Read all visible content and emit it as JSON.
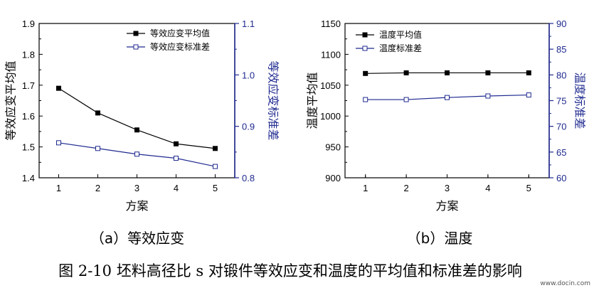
{
  "chart_data": [
    {
      "type": "line",
      "x": [
        1,
        2,
        3,
        4,
        5
      ],
      "xlabel": "方案",
      "xlim": [
        0.5,
        5.5
      ],
      "xticks": [
        "1",
        "2",
        "3",
        "4",
        "5"
      ],
      "ylabel": "等效应变平均值",
      "ylim": [
        1.4,
        1.9
      ],
      "yticks": [
        "1.4",
        "1.5",
        "1.6",
        "1.7",
        "1.8",
        "1.9"
      ],
      "y2label": "等效应变标准差",
      "y2lim": [
        0.8,
        1.1
      ],
      "y2ticks": [
        "0.8",
        "0.9",
        "1.0",
        "1.1"
      ],
      "legend_position": "top-right",
      "series": [
        {
          "name": "等效应变平均值",
          "axis": "left",
          "marker": "filled-square",
          "color": "#000000",
          "values": [
            1.69,
            1.61,
            1.555,
            1.51,
            1.495
          ]
        },
        {
          "name": "等效应变标准差",
          "axis": "right",
          "marker": "open-square",
          "color": "#1f2a8f",
          "values": [
            0.868,
            0.857,
            0.846,
            0.838,
            0.822
          ]
        }
      ],
      "subtitle": "（a）等效应变"
    },
    {
      "type": "line",
      "x": [
        1,
        2,
        3,
        4,
        5
      ],
      "xlabel": "方案",
      "xlim": [
        0.5,
        5.5
      ],
      "xticks": [
        "1",
        "2",
        "3",
        "4",
        "5"
      ],
      "ylabel": "温度平均值",
      "ylim": [
        900,
        1150
      ],
      "yticks": [
        "900",
        "950",
        "1000",
        "1050",
        "1100",
        "1150"
      ],
      "y2label": "温度标准差",
      "y2lim": [
        60,
        90
      ],
      "y2ticks": [
        "60",
        "65",
        "70",
        "75",
        "80",
        "85",
        "90"
      ],
      "legend_position": "top-left",
      "series": [
        {
          "name": "温度平均值",
          "axis": "left",
          "marker": "filled-square",
          "color": "#000000",
          "values": [
            1069,
            1070,
            1070,
            1070,
            1070
          ]
        },
        {
          "name": "温度标准差",
          "axis": "right",
          "marker": "open-square",
          "color": "#1f2a8f",
          "values": [
            75.2,
            75.2,
            75.6,
            75.9,
            76.1
          ]
        }
      ],
      "subtitle": "（b）温度"
    }
  ],
  "caption": "图 2-10 坯料高径比 s 对锻件等效应变和温度的平均值和标准差的影响",
  "watermark": "www.docin.com",
  "colors": {
    "primary": "#000000",
    "secondary": "#1f2a8f"
  }
}
